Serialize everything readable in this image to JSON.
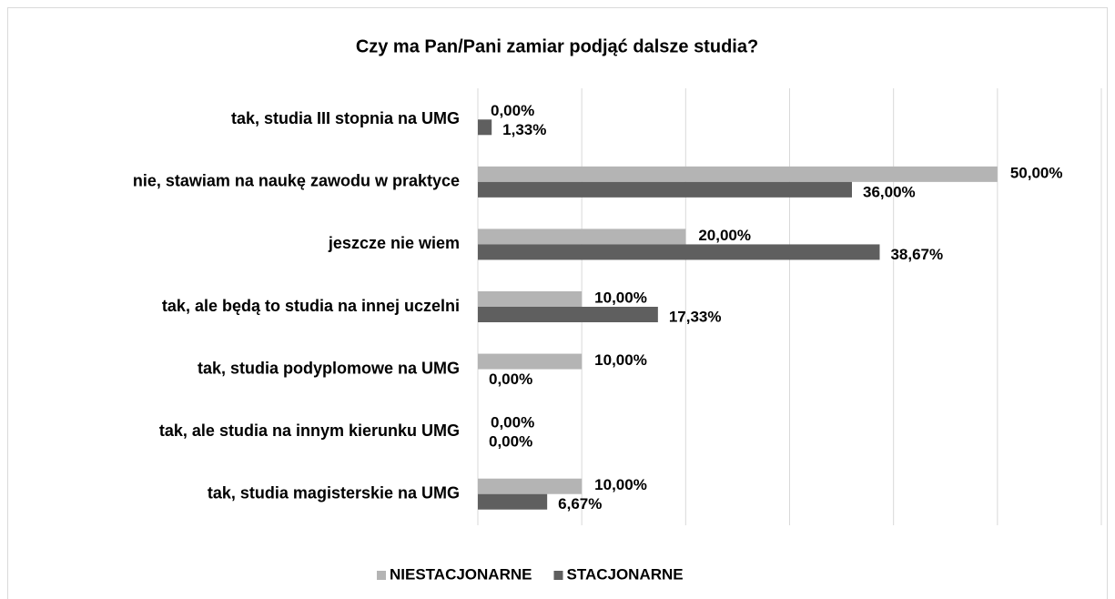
{
  "chart_data": {
    "type": "barh",
    "title": "Czy ma Pan/Pani zamiar podjąć dalsze studia?",
    "categories": [
      "tak, studia III stopnia na UMG",
      "nie, stawiam na naukę zawodu w praktyce",
      "jeszcze nie wiem",
      "tak, ale będą to studia na innej uczelni",
      "tak, studia podyplomowe na UMG",
      "tak, ale studia na innym kierunku UMG",
      "tak, studia magisterskie na UMG"
    ],
    "series": [
      {
        "name": "NIESTACJONARNE",
        "color": "#b4b4b4",
        "values": [
          0,
          50,
          20,
          10,
          10,
          0,
          10
        ],
        "value_labels": [
          "0,00%",
          "50,00%",
          "20,00%",
          "10,00%",
          "10,00%",
          "0,00%",
          "10,00%"
        ]
      },
      {
        "name": "STACJONARNE",
        "color": "#5f5f5f",
        "values": [
          1.33,
          36,
          38.67,
          17.33,
          0,
          0,
          6.67
        ],
        "value_labels": [
          "1,33%",
          "36,00%",
          "38,67%",
          "17,33%",
          "0,00%",
          "0,00%",
          "6,67%"
        ]
      }
    ],
    "xlim": [
      0,
      60
    ],
    "xticks": [
      0,
      10,
      20,
      30,
      40,
      50,
      60
    ],
    "grid": true,
    "legend": "bottom"
  }
}
